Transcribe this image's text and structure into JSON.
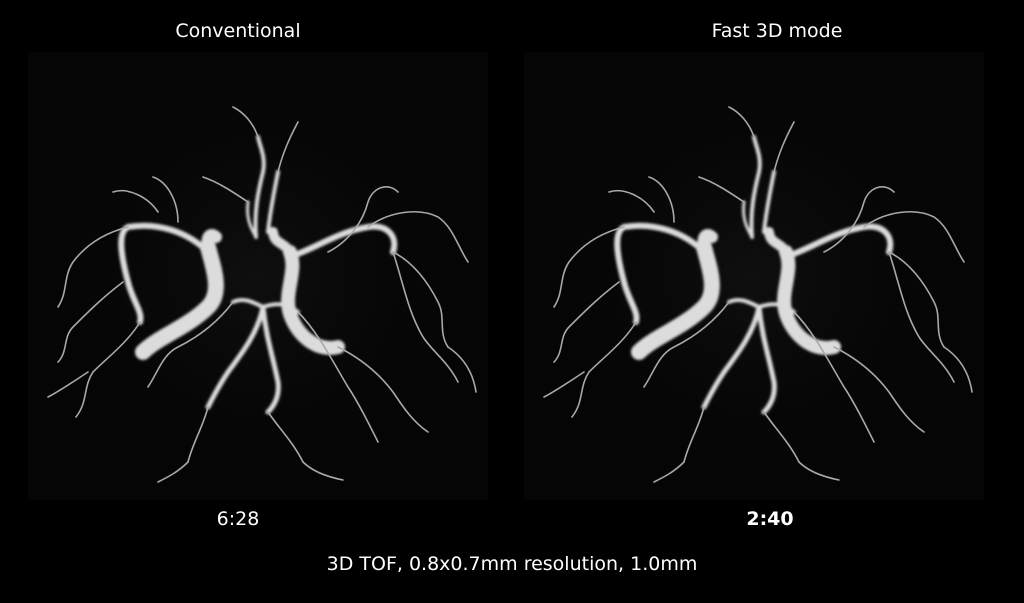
{
  "panels": [
    {
      "title": "Conventional",
      "scan_time": "6:28",
      "image": "3d-tof-angiogram-conventional"
    },
    {
      "title": "Fast 3D mode",
      "scan_time": "2:40",
      "image": "3d-tof-angiogram-fast"
    }
  ],
  "caption": "3D TOF, 0.8x0.7mm resolution, 1.0mm",
  "colors": {
    "background": "#000000",
    "text": "#ffffff",
    "vessel": "#e8e8e8"
  }
}
